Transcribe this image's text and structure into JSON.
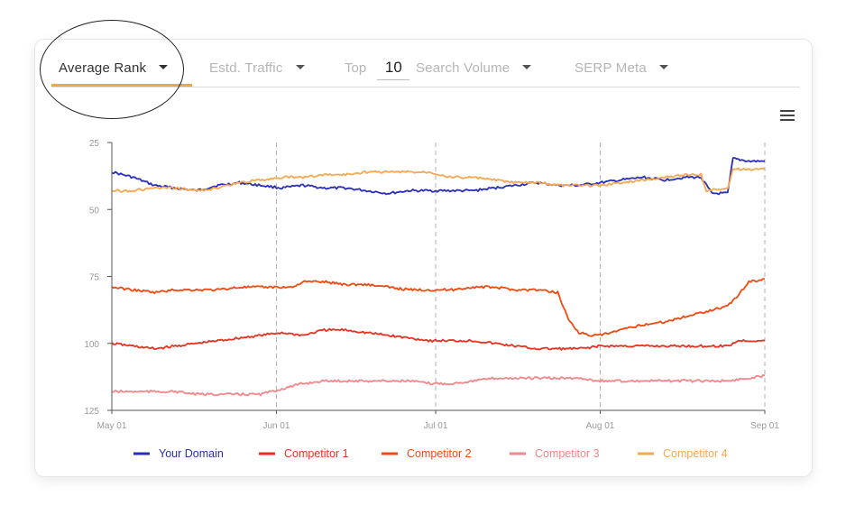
{
  "tabs": {
    "average_rank": "Average Rank",
    "estd_traffic": "Estd. Traffic",
    "top_label": "Top",
    "top_value": "10",
    "search_volume": "Search Volume",
    "serp_meta": "SERP Meta"
  },
  "icons": {
    "menu": "hamburger-menu-icon",
    "caret": "caret-down-icon"
  },
  "colors": {
    "accent": "#f5a540",
    "your_domain": "#2a2eb8",
    "competitor_1": "#e8321f",
    "competitor_2": "#ef4a10",
    "competitor_3": "#f4868a",
    "competitor_4": "#f7a850"
  },
  "chart_data": {
    "type": "line",
    "y_inverted": true,
    "ylim": [
      25,
      125
    ],
    "y_ticks": [
      "25",
      "50",
      "75",
      "100",
      "125"
    ],
    "y_tick_values": [
      25,
      50,
      75,
      100,
      125
    ],
    "x_ticks": [
      "May 01",
      "Jun 01",
      "Jul 01",
      "Aug 01",
      "Sep 01"
    ],
    "x_tick_days": [
      0,
      31,
      61,
      92,
      123
    ],
    "x_range_days": [
      0,
      123
    ],
    "grid": "vertical-dashed",
    "legend_position": "bottom",
    "series": [
      {
        "name": "Your Domain",
        "color": "#2a2eb8",
        "x": [
          0,
          4,
          8,
          12,
          16,
          20,
          24,
          28,
          32,
          36,
          40,
          44,
          48,
          52,
          56,
          60,
          64,
          68,
          72,
          76,
          80,
          84,
          88,
          92,
          96,
          100,
          104,
          108,
          111,
          113,
          116,
          117,
          120,
          123
        ],
        "y": [
          36,
          38,
          41,
          42,
          43,
          41,
          40,
          41,
          42,
          41,
          42,
          42,
          43,
          44,
          43,
          43,
          43,
          43,
          42,
          41,
          40,
          41,
          41,
          40,
          39,
          38,
          39,
          38,
          38,
          44,
          44,
          31,
          32,
          32
        ]
      },
      {
        "name": "Competitor 1",
        "color": "#e8321f",
        "x": [
          0,
          4,
          8,
          12,
          16,
          20,
          24,
          28,
          32,
          36,
          40,
          44,
          48,
          52,
          56,
          60,
          64,
          68,
          72,
          76,
          80,
          84,
          88,
          92,
          96,
          100,
          104,
          108,
          112,
          116,
          118,
          123
        ],
        "y": [
          100,
          101,
          102,
          101,
          100,
          99,
          98,
          97,
          96,
          97,
          95,
          95,
          96,
          97,
          98,
          99,
          99,
          99,
          100,
          101,
          102,
          102,
          102,
          101,
          101,
          101,
          101,
          101,
          101,
          101,
          99,
          99
        ]
      },
      {
        "name": "Competitor 2",
        "color": "#ef4a10",
        "x": [
          0,
          4,
          8,
          12,
          16,
          20,
          24,
          28,
          31,
          34,
          36,
          40,
          44,
          48,
          52,
          56,
          60,
          64,
          68,
          72,
          76,
          80,
          84,
          86,
          88,
          90,
          92,
          96,
          100,
          104,
          108,
          112,
          116,
          118,
          120,
          123
        ],
        "y": [
          79,
          80,
          81,
          80,
          80,
          80,
          79,
          79,
          79,
          79,
          77,
          77,
          78,
          78,
          79,
          80,
          80,
          80,
          79,
          79,
          80,
          80,
          81,
          91,
          96,
          97,
          97,
          95,
          93,
          92,
          90,
          88,
          86,
          82,
          77,
          76
        ]
      },
      {
        "name": "Competitor 3",
        "color": "#f4868a",
        "x": [
          0,
          4,
          8,
          12,
          16,
          20,
          24,
          28,
          32,
          36,
          40,
          44,
          48,
          52,
          56,
          60,
          64,
          68,
          72,
          76,
          80,
          84,
          88,
          92,
          96,
          100,
          104,
          108,
          112,
          116,
          120,
          123
        ],
        "y": [
          118,
          118,
          118,
          118,
          119,
          119,
          119,
          119,
          117,
          115,
          114,
          114,
          114,
          114,
          114,
          115,
          115,
          114,
          113,
          113,
          113,
          113,
          113,
          114,
          114,
          114,
          114,
          114,
          114,
          114,
          113,
          112
        ]
      },
      {
        "name": "Competitor 4",
        "color": "#f7a850",
        "x": [
          0,
          4,
          8,
          12,
          16,
          20,
          24,
          28,
          32,
          36,
          40,
          44,
          48,
          52,
          56,
          60,
          64,
          68,
          72,
          76,
          80,
          84,
          88,
          92,
          96,
          100,
          104,
          108,
          111,
          112,
          116,
          117,
          120,
          123
        ],
        "y": [
          43,
          43,
          42,
          42,
          43,
          42,
          40,
          39,
          38,
          38,
          37,
          37,
          36,
          36,
          36,
          36,
          38,
          38,
          39,
          40,
          40,
          41,
          41,
          41,
          40,
          39,
          38,
          37,
          37,
          43,
          42,
          35,
          35,
          35
        ]
      }
    ]
  }
}
